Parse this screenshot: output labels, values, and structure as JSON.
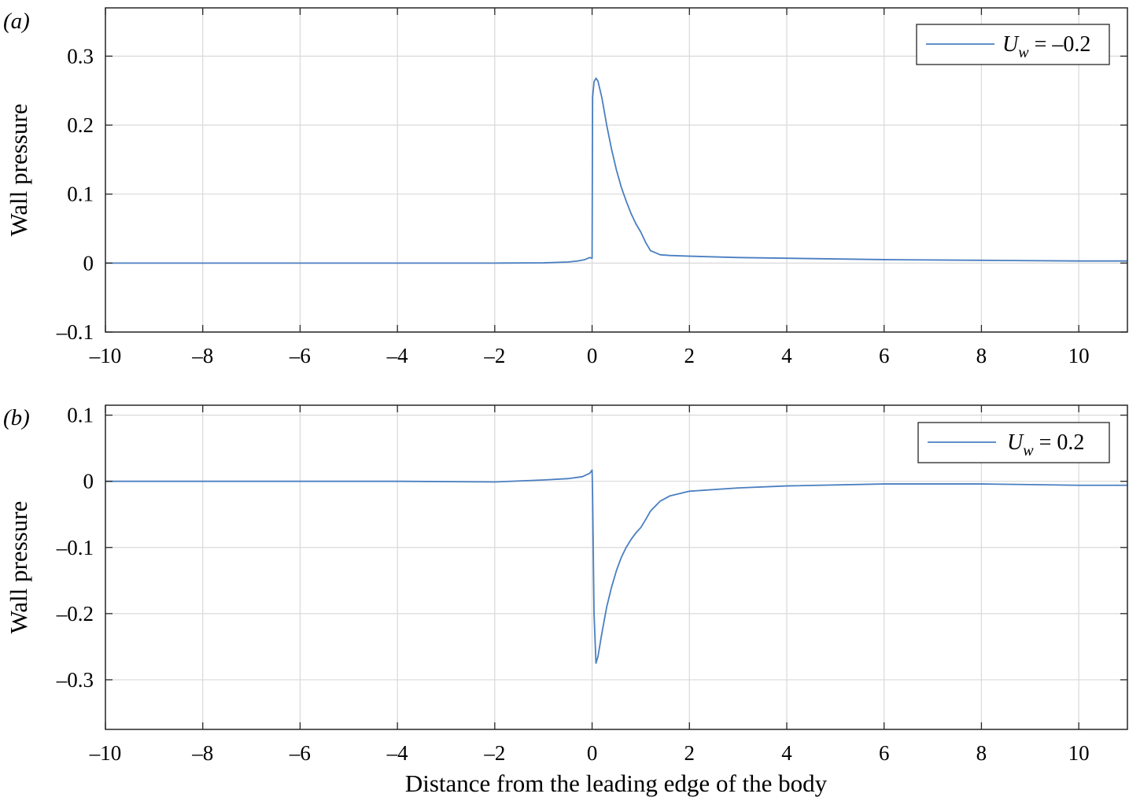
{
  "figure": {
    "xlabel": "Distance from the leading edge of the body",
    "line_color": "#4a7fc1"
  },
  "chart_data": [
    {
      "type": "line",
      "panel_label": "(a)",
      "title": "",
      "xlabel": "",
      "ylabel": "Wall pressure",
      "xlim": [
        -10,
        11
      ],
      "ylim": [
        -0.1,
        0.37
      ],
      "xticks": [
        -10,
        -8,
        -6,
        -4,
        -2,
        0,
        2,
        4,
        6,
        8,
        10
      ],
      "yticks": [
        -0.1,
        0,
        0.1,
        0.2,
        0.3
      ],
      "xtick_labels": [
        "–10",
        "–8",
        "–6",
        "–4",
        "–2",
        "0",
        "2",
        "4",
        "6",
        "8",
        "10"
      ],
      "ytick_labels": [
        "–0.1",
        "0",
        "0.1",
        "0.2",
        "0.3"
      ],
      "grid": true,
      "legend_position": "top-right",
      "series": [
        {
          "name": "U_w = –0.2",
          "legend_symbol": "U",
          "legend_subscript": "w",
          "legend_value": " = –0.2",
          "color": "#4a7fc1",
          "x": [
            -10,
            -4,
            -2,
            -1,
            -0.5,
            -0.3,
            -0.15,
            -0.05,
            0,
            0.01,
            0.04,
            0.08,
            0.12,
            0.2,
            0.3,
            0.4,
            0.5,
            0.6,
            0.7,
            0.8,
            0.9,
            1.0,
            1.1,
            1.2,
            1.4,
            1.6,
            2,
            3,
            4,
            6,
            8,
            10,
            11
          ],
          "y": [
            0,
            0,
            0,
            0.0003,
            0.0015,
            0.003,
            0.005,
            0.008,
            0.007,
            0.24,
            0.263,
            0.268,
            0.264,
            0.24,
            0.2,
            0.165,
            0.135,
            0.11,
            0.09,
            0.072,
            0.057,
            0.045,
            0.03,
            0.018,
            0.012,
            0.011,
            0.01,
            0.008,
            0.007,
            0.005,
            0.004,
            0.003,
            0.003
          ]
        }
      ]
    },
    {
      "type": "line",
      "panel_label": "(b)",
      "title": "",
      "xlabel": "Distance from the leading edge of the body",
      "ylabel": "Wall pressure",
      "xlim": [
        -10,
        11
      ],
      "ylim": [
        -0.375,
        0.115
      ],
      "xticks": [
        -10,
        -8,
        -6,
        -4,
        -2,
        0,
        2,
        4,
        6,
        8,
        10
      ],
      "yticks": [
        -0.3,
        -0.2,
        -0.1,
        0,
        0.1
      ],
      "xtick_labels": [
        "–10",
        "–8",
        "–6",
        "–4",
        "–2",
        "0",
        "2",
        "4",
        "6",
        "8",
        "10"
      ],
      "ytick_labels": [
        "–0.3",
        "–0.2",
        "–0.1",
        "0",
        "0.1"
      ],
      "grid": true,
      "legend_position": "top-right",
      "series": [
        {
          "name": "U_w = 0.2",
          "legend_symbol": "U",
          "legend_subscript": "w",
          "legend_value": " = 0.2",
          "color": "#4a7fc1",
          "x": [
            -10,
            -6,
            -4,
            -2,
            -1,
            -0.5,
            -0.2,
            -0.05,
            0,
            0.01,
            0.04,
            0.08,
            0.12,
            0.2,
            0.3,
            0.4,
            0.5,
            0.6,
            0.7,
            0.8,
            0.9,
            1.0,
            1.1,
            1.2,
            1.4,
            1.6,
            2,
            3,
            4,
            6,
            7,
            8,
            9,
            10,
            11
          ],
          "y": [
            0,
            0,
            0,
            -0.001,
            0.002,
            0.004,
            0.007,
            0.012,
            0.017,
            -0.02,
            -0.2,
            -0.275,
            -0.265,
            -0.23,
            -0.19,
            -0.16,
            -0.135,
            -0.115,
            -0.1,
            -0.088,
            -0.078,
            -0.07,
            -0.058,
            -0.045,
            -0.03,
            -0.022,
            -0.015,
            -0.01,
            -0.007,
            -0.004,
            -0.004,
            -0.004,
            -0.005,
            -0.006,
            -0.006
          ]
        }
      ]
    }
  ]
}
